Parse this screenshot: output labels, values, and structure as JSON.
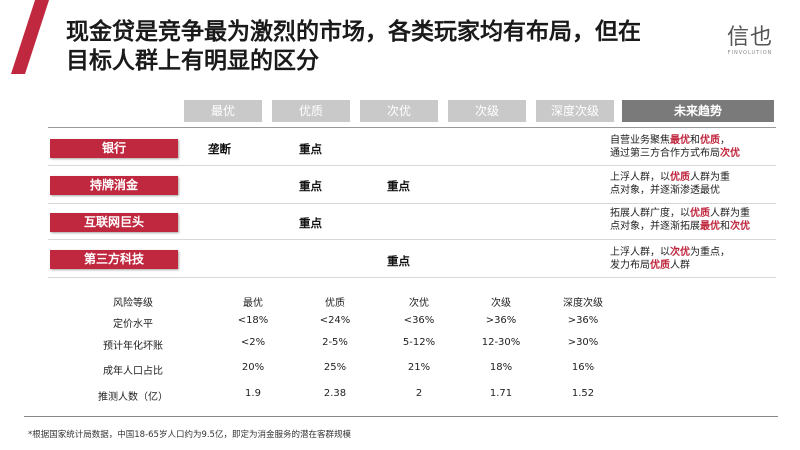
{
  "title": {
    "line1": "现金贷是竞争最为激烈的市场，各类玩家均有布局，但在",
    "line2": "目标人群上有明显的区分"
  },
  "logo": {
    "mark": "信也",
    "sub": "FINVOLUTION"
  },
  "header": {
    "columns": [
      "最优",
      "优质",
      "次优",
      "次级",
      "深度次级"
    ],
    "future": "未来趋势"
  },
  "players": [
    {
      "name": "银行",
      "cells": [
        "垄断",
        "重点"
      ],
      "future": [
        [
          {
            "t": "自营业务聚焦"
          },
          {
            "t": "最优",
            "hl": true
          },
          {
            "t": "和"
          },
          {
            "t": "优质",
            "hl": true
          },
          {
            "t": "，"
          }
        ],
        [
          {
            "t": "通过第三方合作方式布局"
          },
          {
            "t": "次优",
            "hl": true
          }
        ]
      ]
    },
    {
      "name": "持牌消金",
      "cells": [
        "重点",
        "重点"
      ],
      "future": [
        [
          {
            "t": "上浮人群，以"
          },
          {
            "t": "优质",
            "hl": true
          },
          {
            "t": "人群为重"
          }
        ],
        [
          {
            "t": "点对象，并逐渐渗透最优"
          }
        ]
      ]
    },
    {
      "name": "互联网巨头",
      "cells": [
        "重点"
      ],
      "future": [
        [
          {
            "t": "拓展人群广度，以"
          },
          {
            "t": "优质",
            "hl": true
          },
          {
            "t": "人群为重"
          }
        ],
        [
          {
            "t": "点对象，并逐渐拓展"
          },
          {
            "t": "最优",
            "hl": true
          },
          {
            "t": "和"
          },
          {
            "t": "次优",
            "hl": true
          }
        ]
      ]
    },
    {
      "name": "第三方科技",
      "cells": [
        "重点"
      ],
      "future": [
        [
          {
            "t": "上浮人群，以"
          },
          {
            "t": "次优",
            "hl": true
          },
          {
            "t": "为重点，"
          }
        ],
        [
          {
            "t": "发力布局"
          },
          {
            "t": "优质",
            "hl": true
          },
          {
            "t": "人群"
          }
        ]
      ]
    }
  ],
  "risk_table": {
    "header": [
      "风险等级",
      "最优",
      "优质",
      "次优",
      "次级",
      "深度次级"
    ],
    "rows": [
      [
        "定价水平",
        "<18%",
        "<24%",
        "<36%",
        ">36%",
        ">36%"
      ],
      [
        "预计年化坏账",
        "<2%",
        "2-5%",
        "5-12%",
        "12-30%",
        ">30%"
      ],
      [
        "成年人口占比",
        "20%",
        "25%",
        "21%",
        "18%",
        "16%"
      ],
      [
        "推测人数（亿）",
        "1.9",
        "2.38",
        "2",
        "1.71",
        "1.52"
      ]
    ]
  },
  "footnote": "*根据国家统计局数据，中国18-65岁人口约为9.5亿，即定为消金服务的潜在客群规模",
  "colors": {
    "accent": "#c0283f",
    "header_gray": "#c9c9c9",
    "future_gray": "#7a7a7a"
  }
}
